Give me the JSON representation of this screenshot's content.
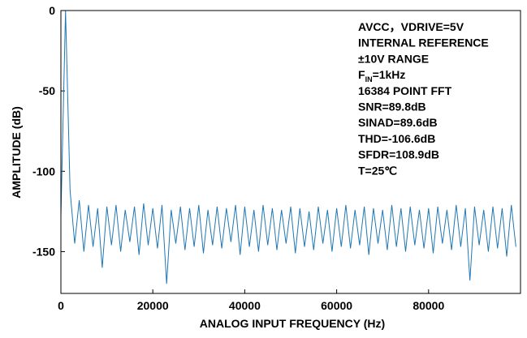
{
  "chart_data": {
    "type": "line",
    "x_label": "ANALOG INPUT FREQUENCY (Hz)",
    "y_label": "AMPLITUDE (dB)",
    "xlim": [
      0,
      100000
    ],
    "ylim": [
      -176,
      0
    ],
    "xticks": [
      0,
      20000,
      40000,
      60000,
      80000
    ],
    "yticks": [
      0,
      -50,
      -100,
      -150
    ],
    "grid": false,
    "annotation": [
      "AVCC，VDRIVE=5V",
      "INTERNAL REFERENCE",
      "±10V RANGE",
      [
        "F",
        "IN",
        "=1kHz"
      ],
      "16384 POINT FFT",
      "SNR=89.8dB",
      "SINAD=89.6dB",
      "THD=-106.6dB",
      "SFDR=108.9dB",
      "T=25℃"
    ],
    "x": [
      0,
      1000,
      2000,
      3000,
      4000,
      5000,
      6000,
      7000,
      8000,
      9000,
      10000,
      11000,
      12000,
      13000,
      14000,
      15000,
      16000,
      17000,
      18000,
      19000,
      20000,
      21000,
      22000,
      23000,
      24000,
      25000,
      26000,
      27000,
      28000,
      29000,
      30000,
      31000,
      32000,
      33000,
      34000,
      35000,
      36000,
      37000,
      38000,
      39000,
      40000,
      41000,
      42000,
      43000,
      44000,
      45000,
      46000,
      47000,
      48000,
      49000,
      50000,
      51000,
      52000,
      53000,
      54000,
      55000,
      56000,
      57000,
      58000,
      59000,
      60000,
      61000,
      62000,
      63000,
      64000,
      65000,
      66000,
      67000,
      68000,
      69000,
      70000,
      71000,
      72000,
      73000,
      74000,
      75000,
      76000,
      77000,
      78000,
      79000,
      80000,
      81000,
      82000,
      83000,
      84000,
      85000,
      86000,
      87000,
      88000,
      89000,
      90000,
      91000,
      92000,
      93000,
      94000,
      95000,
      96000,
      97000,
      98000,
      99000
    ],
    "series": [
      {
        "color": "#1f77b4",
        "values": [
          -128,
          0,
          -112,
          -145,
          -118,
          -150,
          -121,
          -147,
          -123,
          -160,
          -122,
          -146,
          -121,
          -150,
          -124,
          -144,
          -122,
          -152,
          -120,
          -146,
          -123,
          -148,
          -121,
          -170,
          -124,
          -145,
          -122,
          -149,
          -123,
          -147,
          -121,
          -151,
          -124,
          -146,
          -122,
          -148,
          -123,
          -144,
          -121,
          -152,
          -122,
          -147,
          -124,
          -150,
          -121,
          -146,
          -123,
          -149,
          -124,
          -145,
          -122,
          -151,
          -123,
          -147,
          -125,
          -149,
          -122,
          -145,
          -124,
          -150,
          -123,
          -147,
          -121,
          -148,
          -124,
          -146,
          -122,
          -152,
          -123,
          -145,
          -124,
          -149,
          -121,
          -147,
          -123,
          -150,
          -122,
          -146,
          -124,
          -148,
          -123,
          -151,
          -122,
          -145,
          -124,
          -149,
          -121,
          -147,
          -123,
          -168,
          -122,
          -146,
          -124,
          -150,
          -122,
          -148,
          -123,
          -153,
          -121,
          -147
        ]
      }
    ]
  }
}
